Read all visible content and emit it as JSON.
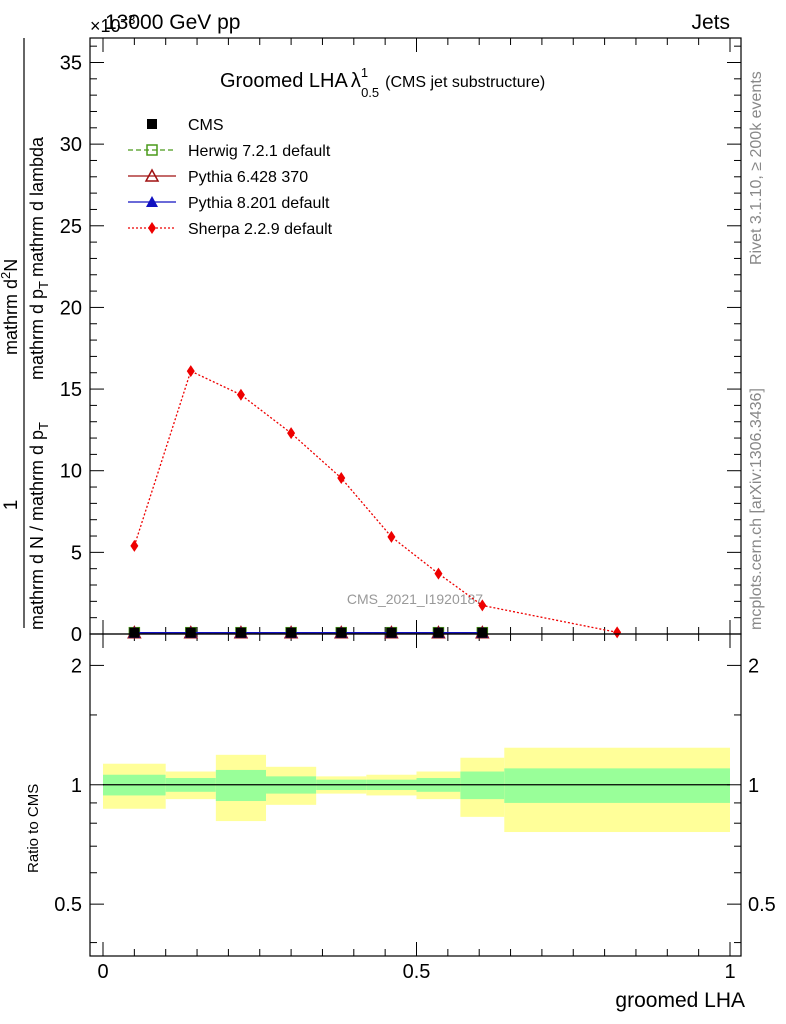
{
  "header": {
    "left": "13000 GeV pp",
    "right": "Jets",
    "exponent_prefix": "×10",
    "exponent_power": "−3"
  },
  "side_labels": {
    "rivet": "Rivet 3.1.10, ≥ 200k events",
    "mcplots": "mcplots.cern.ch [arXiv:1306.3436]"
  },
  "colors": {
    "cms": "#000000",
    "herwig": "#4a9a1a",
    "pythia6": "#a01010",
    "pythia8": "#1010c0",
    "sherpa": "#ee0000",
    "band_inner": "#99ff99",
    "band_outer": "#ffff99",
    "watermark": "#999999"
  },
  "chart_data": [
    {
      "type": "line",
      "panel": "main",
      "title": "Groomed LHA",
      "title_symbol": "λ",
      "title_sup": "1",
      "title_sub": "0.5",
      "title_suffix": "(CMS jet substructure)",
      "ylabel_fraction_numerator": "1",
      "ylabel_fraction_denominator": "mathrm d N / mathrm d p",
      "ylabel_fraction_denominator_sub": "T",
      "ylabel_top": "mathrm d",
      "ylabel_top_sup": "2",
      "ylabel_top_main": "N",
      "ylabel_bottom": "mathrm d p",
      "ylabel_bottom_sub": "T",
      "ylabel_bottom_tail": "mathrm d lambda",
      "xlim": [
        0,
        1
      ],
      "ylim": [
        0,
        36.5
      ],
      "y_scale_exponent": -3,
      "yticks": [
        0,
        5,
        10,
        15,
        20,
        25,
        30,
        35
      ],
      "ytick_labels": [
        "0",
        "5",
        "10",
        "15",
        "20",
        "25",
        "30",
        "35"
      ],
      "watermark": "CMS_2021_I1920187",
      "legend_position": "top-left",
      "series": [
        {
          "name": "CMS",
          "key": "cms",
          "marker": "square",
          "style": "none",
          "x": [
            0.05,
            0.14,
            0.22,
            0.3,
            0.38,
            0.46,
            0.535,
            0.605
          ],
          "y": [
            0.08,
            0.08,
            0.08,
            0.08,
            0.08,
            0.08,
            0.08,
            0.08
          ]
        },
        {
          "name": "Herwig 7.2.1 default",
          "key": "herwig",
          "marker": "open-square",
          "style": "dashed",
          "x": [
            0.05,
            0.14,
            0.22,
            0.3,
            0.38,
            0.46,
            0.535,
            0.605
          ],
          "y": [
            0.08,
            0.08,
            0.08,
            0.08,
            0.08,
            0.08,
            0.08,
            0.08
          ]
        },
        {
          "name": "Pythia 6.428 370",
          "key": "pythia6",
          "marker": "open-triangle",
          "style": "solid",
          "x": [
            0.05,
            0.14,
            0.22,
            0.3,
            0.38,
            0.46,
            0.535,
            0.605
          ],
          "y": [
            0.08,
            0.08,
            0.08,
            0.08,
            0.08,
            0.08,
            0.08,
            0.08
          ]
        },
        {
          "name": "Pythia 8.201 default",
          "key": "pythia8",
          "marker": "filled-triangle",
          "style": "solid",
          "x": [
            0.05,
            0.14,
            0.22,
            0.3,
            0.38,
            0.46,
            0.535,
            0.605
          ],
          "y": [
            0.08,
            0.08,
            0.08,
            0.08,
            0.08,
            0.08,
            0.08,
            0.08
          ]
        },
        {
          "name": "Sherpa 2.2.9 default",
          "key": "sherpa",
          "marker": "diamond",
          "style": "dotted",
          "x": [
            0.05,
            0.14,
            0.22,
            0.3,
            0.38,
            0.46,
            0.535,
            0.605,
            0.82
          ],
          "y": [
            5.4,
            16.1,
            14.65,
            12.3,
            9.55,
            5.95,
            3.7,
            1.75,
            0.1
          ]
        }
      ]
    },
    {
      "type": "area",
      "panel": "ratio",
      "ylabel": "Ratio to CMS",
      "xlabel": "groomed LHA",
      "xlim": [
        0,
        1
      ],
      "ylim": [
        0.37,
        2.4
      ],
      "y_scale": "log",
      "xticks": [
        0,
        0.5,
        1
      ],
      "xtick_labels": [
        "0",
        "0.5",
        "1"
      ],
      "yticks": [
        0.5,
        1,
        2
      ],
      "ytick_labels": [
        "0.5",
        "1",
        "2"
      ],
      "bins": [
        0,
        0.1,
        0.18,
        0.26,
        0.34,
        0.42,
        0.5,
        0.57,
        0.64,
        1.0
      ],
      "band_inner_low": [
        0.94,
        0.96,
        0.91,
        0.95,
        0.97,
        0.97,
        0.96,
        0.92,
        0.9
      ],
      "band_inner_high": [
        1.06,
        1.04,
        1.09,
        1.05,
        1.03,
        1.03,
        1.04,
        1.08,
        1.1
      ],
      "band_outer_low": [
        0.87,
        0.92,
        0.81,
        0.89,
        0.95,
        0.94,
        0.92,
        0.83,
        0.76
      ],
      "band_outer_high": [
        1.13,
        1.08,
        1.19,
        1.11,
        1.05,
        1.06,
        1.08,
        1.17,
        1.24
      ],
      "reference": 1
    }
  ]
}
